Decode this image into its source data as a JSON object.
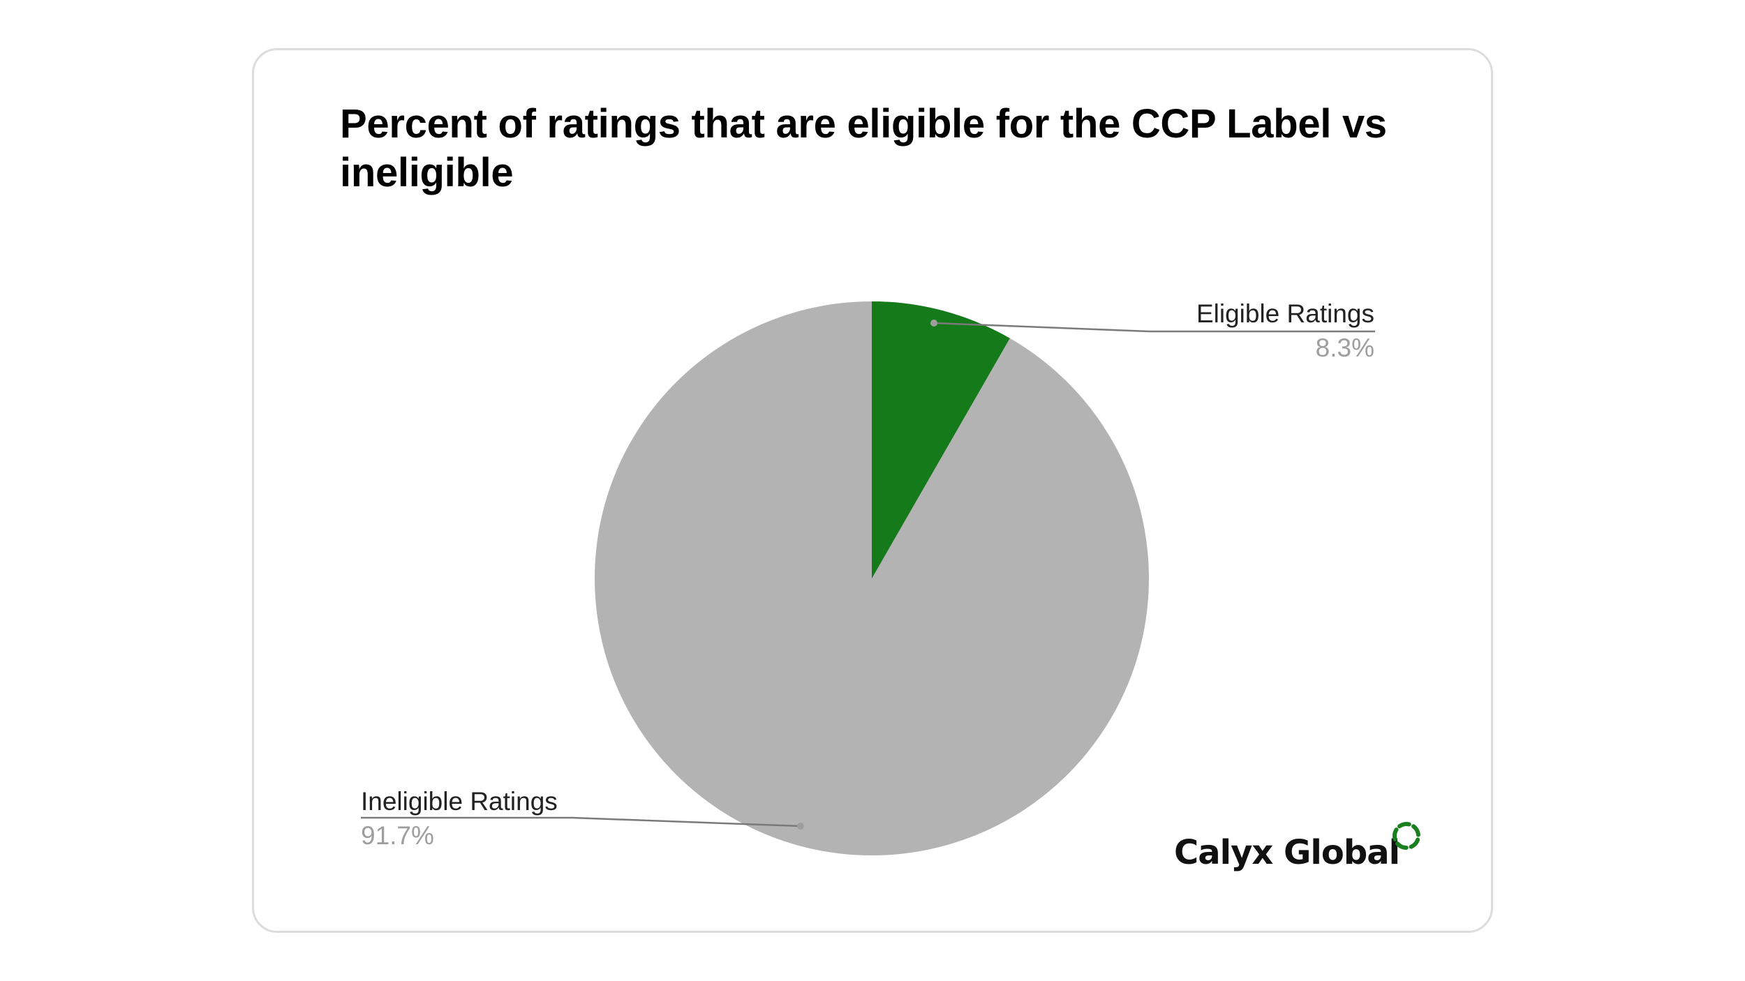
{
  "chart": {
    "title": "Percent of ratings that are eligible for the CCP Label vs ineligible"
  },
  "labels": {
    "eligible": {
      "name": "Eligible Ratings",
      "value": "8.3%"
    },
    "ineligible": {
      "name": "Ineligible Ratings",
      "value": "91.7%"
    }
  },
  "brand": {
    "name": "Calyx Global",
    "icon": "dashed-ring-icon",
    "color": "#1a7f1e"
  },
  "colors": {
    "eligible": "#157a1a",
    "ineligible": "#b3b3b3",
    "leader_line": "#7a7a7a",
    "card_border": "#dcdcdc"
  },
  "chart_data": {
    "type": "pie",
    "title": "Percent of ratings that are eligible for the CCP Label vs ineligible",
    "categories": [
      "Eligible Ratings",
      "Ineligible Ratings"
    ],
    "values": [
      8.3,
      91.7
    ],
    "unit": "%",
    "colors": [
      "#157a1a",
      "#b3b3b3"
    ],
    "start_angle_deg": 0,
    "direction": "clockwise",
    "labels_style": "outside with leader lines, name and percent",
    "legend": "none"
  }
}
